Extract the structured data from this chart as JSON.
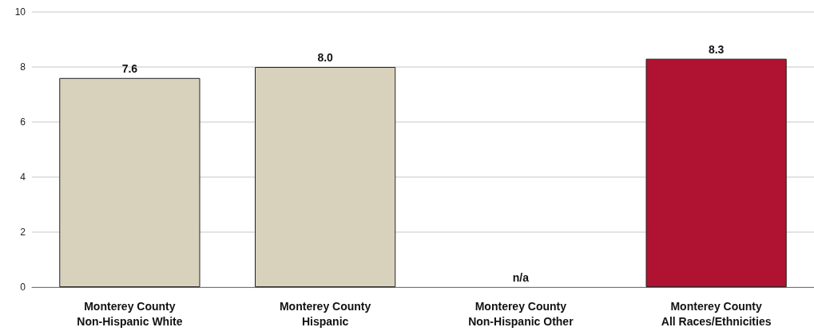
{
  "chart_data": {
    "type": "bar",
    "categories": [
      "Monterey County\nNon-Hispanic White",
      "Monterey County\nHispanic",
      "Monterey County\nNon-Hispanic Other",
      "Monterey County\nAll Races/Ethnicities"
    ],
    "values": [
      7.6,
      8.0,
      null,
      8.3
    ],
    "value_labels": [
      "7.6",
      "8.0",
      "n/a",
      "8.3"
    ],
    "colors": [
      "#d8d2bd",
      "#d8d2bd",
      "#d8d2bd",
      "#b01232"
    ],
    "ylim": [
      0,
      10
    ],
    "yticks": [
      0,
      2,
      4,
      6,
      8,
      10
    ],
    "grid": "y"
  }
}
